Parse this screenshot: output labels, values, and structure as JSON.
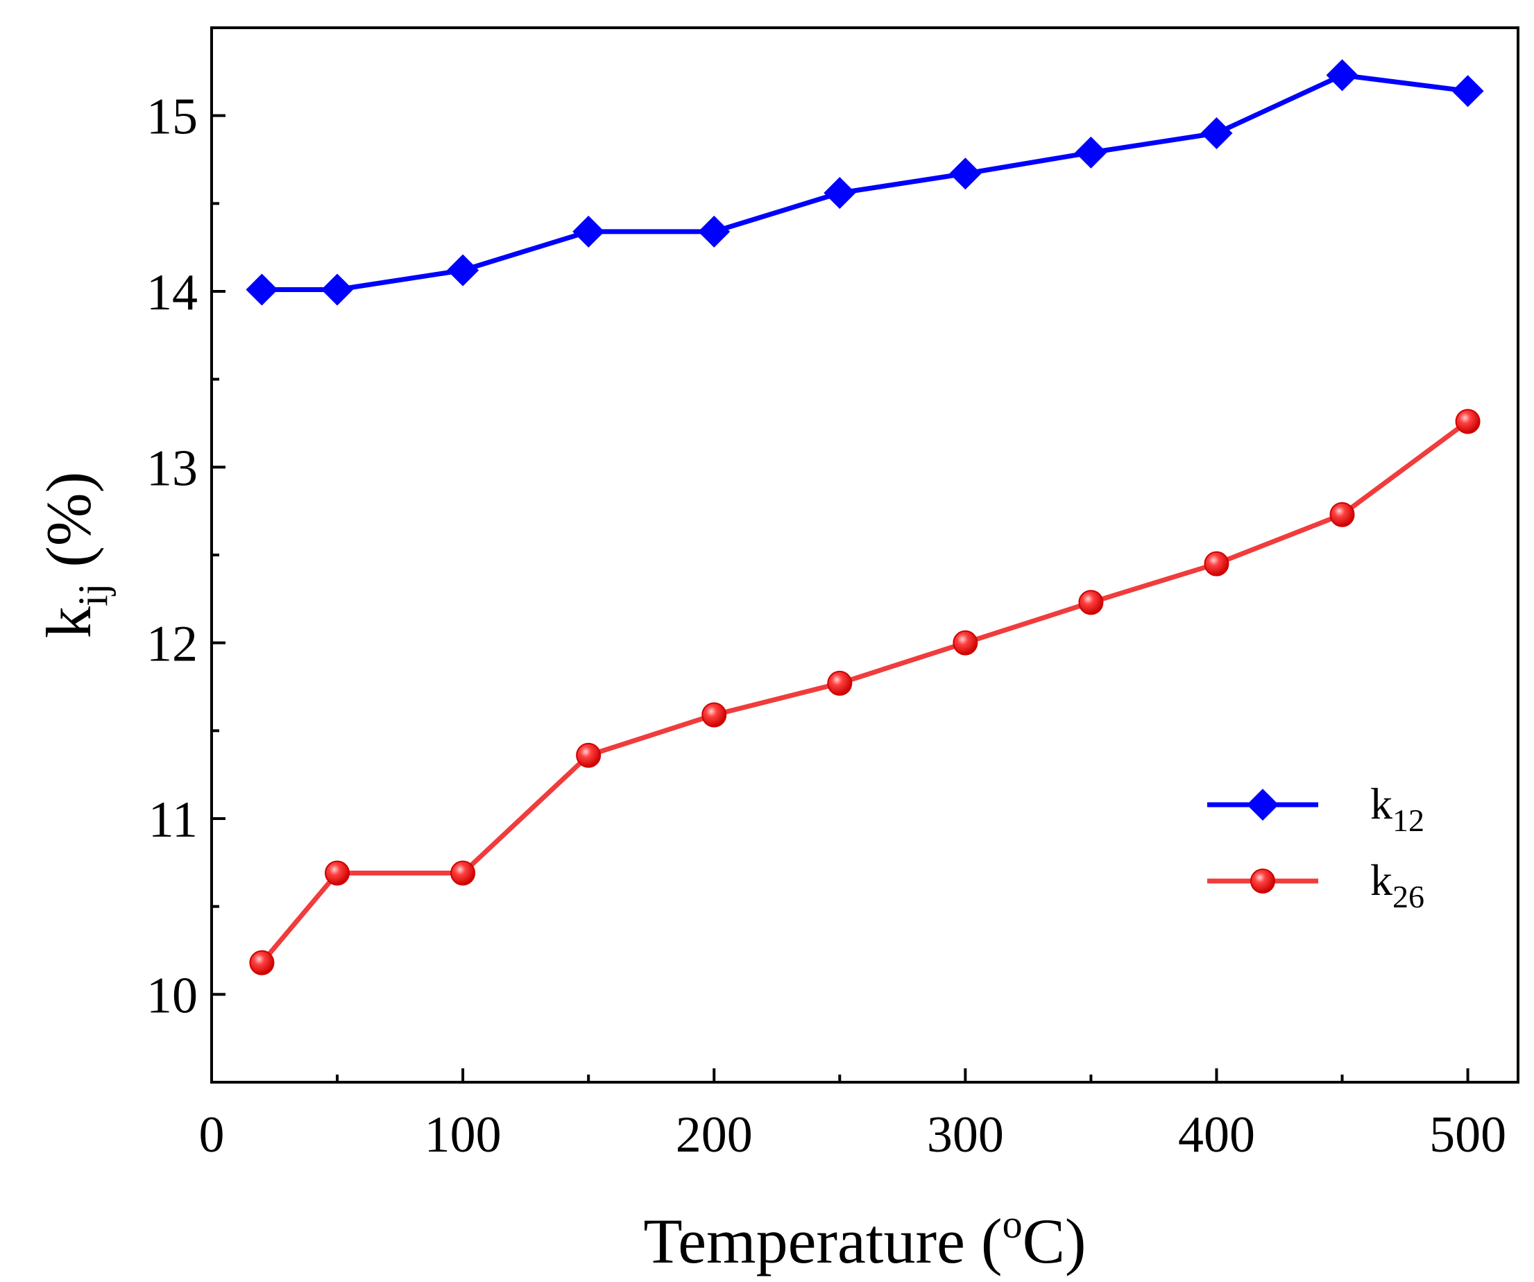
{
  "chart_data": {
    "type": "line",
    "title": "",
    "xlabel": {
      "main": "Temperature (",
      "sup": "o",
      "unit": "C)"
    },
    "ylabel": {
      "main": "k",
      "sub": "ij",
      "unit": " (%)"
    },
    "xlim": [
      0,
      520
    ],
    "ylim": [
      9.5,
      15.5
    ],
    "x_ticks": [
      0,
      100,
      200,
      300,
      400,
      500
    ],
    "x_minor_ticks": [
      50,
      150,
      250,
      350,
      450
    ],
    "y_ticks": [
      10,
      11,
      12,
      13,
      14,
      15
    ],
    "y_minor_ticks": [
      9.5,
      10.5,
      11.5,
      12.5,
      13.5,
      14.5
    ],
    "x": [
      20,
      50,
      100,
      150,
      200,
      250,
      300,
      350,
      400,
      450,
      500
    ],
    "series": [
      {
        "name": "k12",
        "label_main": "k",
        "label_sub": "12",
        "color": "#0000ff",
        "marker": "diamond",
        "values": [
          14.01,
          14.01,
          14.12,
          14.34,
          14.34,
          14.56,
          14.67,
          14.79,
          14.9,
          15.23,
          15.14
        ]
      },
      {
        "name": "k26",
        "label_main": "k",
        "label_sub": "26",
        "color": "#ff0000",
        "line_color": "#f03c3c",
        "marker": "circle",
        "values": [
          10.18,
          10.69,
          10.69,
          11.36,
          11.59,
          11.77,
          12.0,
          12.23,
          12.45,
          12.73,
          13.26
        ]
      }
    ],
    "legend": {
      "position": "bottom-right"
    },
    "grid": false
  }
}
